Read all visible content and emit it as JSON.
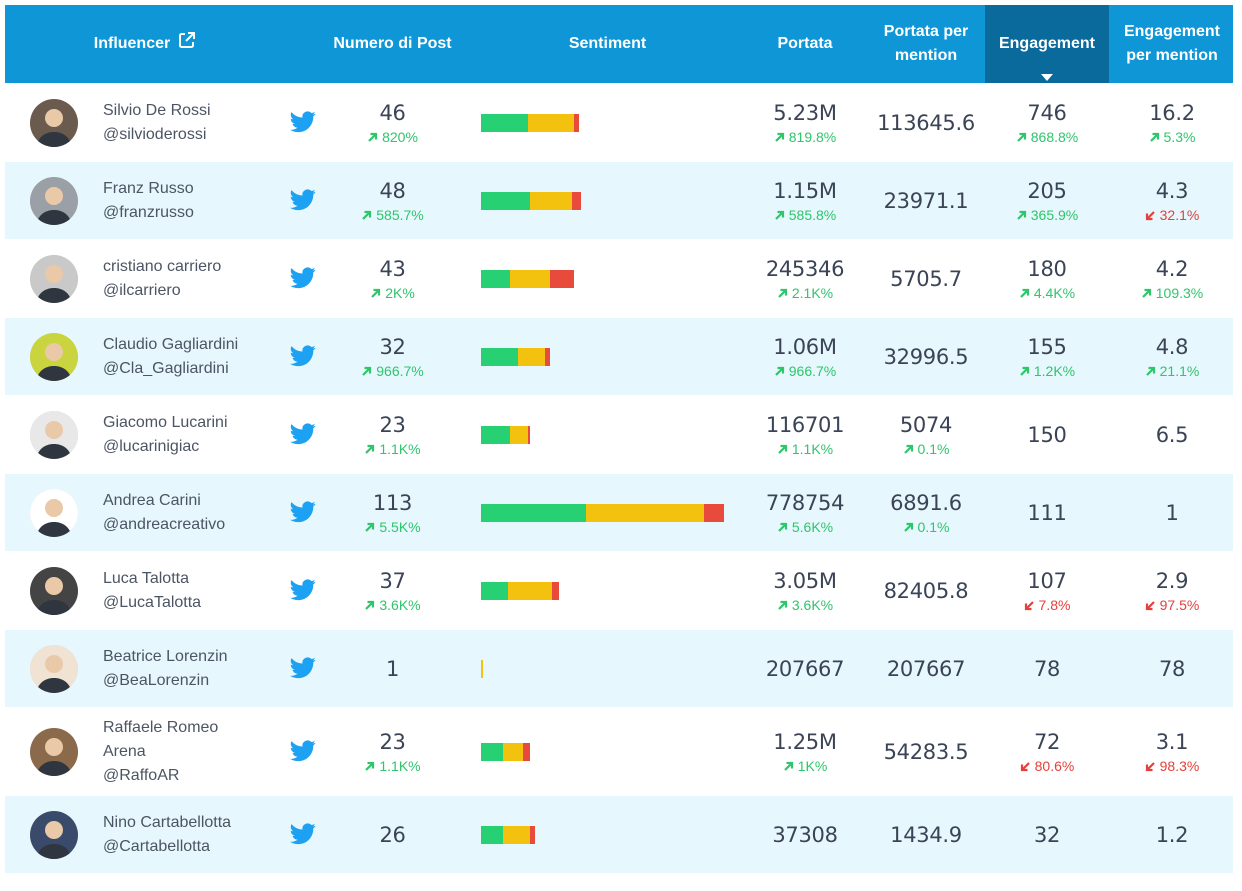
{
  "header": {
    "influencer": "Influencer",
    "posts": "Numero di Post",
    "sentiment": "Sentiment",
    "reach": "Portata",
    "reach_per_mention": "Portata per mention",
    "engagement": "Engagement",
    "engagement_per_mention": "Engagement per mention"
  },
  "colors": {
    "header": "#0f96d6",
    "sorted_header": "#0a6a9c",
    "positive": "#26d073",
    "neutral": "#f3c20e",
    "negative": "#e84a3c",
    "up": "#2ec56b",
    "down": "#e5403a",
    "twitter": "#1da1f2"
  },
  "rows": [
    {
      "name": "Silvio De Rossi",
      "handle": "@silvioderossi",
      "posts": "46",
      "posts_delta": "820%",
      "posts_dir": "up",
      "sentiment": [
        0.19,
        0.19,
        0.02
      ],
      "reach": "5.23M",
      "reach_delta": "819.8%",
      "reach_dir": "up",
      "rpm": "113645.6",
      "rpm_delta": "",
      "rpm_dir": "",
      "eng": "746",
      "eng_delta": "868.8%",
      "eng_dir": "up",
      "epm": "16.2",
      "epm_delta": "5.3%",
      "epm_dir": "up"
    },
    {
      "name": "Franz Russo",
      "handle": "@franzrusso",
      "posts": "48",
      "posts_delta": "585.7%",
      "posts_dir": "up",
      "sentiment": [
        0.2,
        0.17,
        0.04
      ],
      "reach": "1.15M",
      "reach_delta": "585.8%",
      "reach_dir": "up",
      "rpm": "23971.1",
      "rpm_delta": "",
      "rpm_dir": "",
      "eng": "205",
      "eng_delta": "365.9%",
      "eng_dir": "up",
      "epm": "4.3",
      "epm_delta": "32.1%",
      "epm_dir": "down"
    },
    {
      "name": "cristiano carriero",
      "handle": "@ilcarriero",
      "posts": "43",
      "posts_delta": "2K%",
      "posts_dir": "up",
      "sentiment": [
        0.12,
        0.16,
        0.1
      ],
      "reach": "245346",
      "reach_delta": "2.1K%",
      "reach_dir": "up",
      "rpm": "5705.7",
      "rpm_delta": "",
      "rpm_dir": "",
      "eng": "180",
      "eng_delta": "4.4K%",
      "eng_dir": "up",
      "epm": "4.2",
      "epm_delta": "109.3%",
      "epm_dir": "up"
    },
    {
      "name": "Claudio Gagliardini",
      "handle": "@Cla_Gagliardini",
      "posts": "32",
      "posts_delta": "966.7%",
      "posts_dir": "up",
      "sentiment": [
        0.15,
        0.11,
        0.02
      ],
      "reach": "1.06M",
      "reach_delta": "966.7%",
      "reach_dir": "up",
      "rpm": "32996.5",
      "rpm_delta": "",
      "rpm_dir": "",
      "eng": "155",
      "eng_delta": "1.2K%",
      "eng_dir": "up",
      "epm": "4.8",
      "epm_delta": "21.1%",
      "epm_dir": "up"
    },
    {
      "name": "Giacomo Lucarini",
      "handle": "@lucarinigiac",
      "posts": "23",
      "posts_delta": "1.1K%",
      "posts_dir": "up",
      "sentiment": [
        0.12,
        0.07,
        0.01
      ],
      "reach": "116701",
      "reach_delta": "1.1K%",
      "reach_dir": "up",
      "rpm": "5074",
      "rpm_delta": "0.1%",
      "rpm_dir": "up",
      "eng": "150",
      "eng_delta": "",
      "eng_dir": "",
      "epm": "6.5",
      "epm_delta": "",
      "epm_dir": ""
    },
    {
      "name": "Andrea Carini",
      "handle": "@andreacreativo",
      "posts": "113",
      "posts_delta": "5.5K%",
      "posts_dir": "up",
      "sentiment": [
        0.43,
        0.48,
        0.08
      ],
      "reach": "778754",
      "reach_delta": "5.6K%",
      "reach_dir": "up",
      "rpm": "6891.6",
      "rpm_delta": "0.1%",
      "rpm_dir": "up",
      "eng": "111",
      "eng_delta": "",
      "eng_dir": "",
      "epm": "1",
      "epm_delta": "",
      "epm_dir": ""
    },
    {
      "name": "Luca Talotta",
      "handle": "@LucaTalotta",
      "posts": "37",
      "posts_delta": "3.6K%",
      "posts_dir": "up",
      "sentiment": [
        0.11,
        0.18,
        0.03
      ],
      "reach": "3.05M",
      "reach_delta": "3.6K%",
      "reach_dir": "up",
      "rpm": "82405.8",
      "rpm_delta": "",
      "rpm_dir": "",
      "eng": "107",
      "eng_delta": "7.8%",
      "eng_dir": "down",
      "epm": "2.9",
      "epm_delta": "97.5%",
      "epm_dir": "down"
    },
    {
      "name": "Beatrice Lorenzin",
      "handle": "@BeaLorenzin",
      "posts": "1",
      "posts_delta": "",
      "posts_dir": "",
      "sentiment": [
        0,
        0.008,
        0
      ],
      "reach": "207667",
      "reach_delta": "",
      "reach_dir": "",
      "rpm": "207667",
      "rpm_delta": "",
      "rpm_dir": "",
      "eng": "78",
      "eng_delta": "",
      "eng_dir": "",
      "epm": "78",
      "epm_delta": "",
      "epm_dir": ""
    },
    {
      "name": "Raffaele Romeo Arena",
      "handle": "@RaffoAR",
      "posts": "23",
      "posts_delta": "1.1K%",
      "posts_dir": "up",
      "sentiment": [
        0.09,
        0.08,
        0.03
      ],
      "reach": "1.25M",
      "reach_delta": "1K%",
      "reach_dir": "up",
      "rpm": "54283.5",
      "rpm_delta": "",
      "rpm_dir": "",
      "eng": "72",
      "eng_delta": "80.6%",
      "eng_dir": "down",
      "epm": "3.1",
      "epm_delta": "98.3%",
      "epm_dir": "down"
    },
    {
      "name": "Nino Cartabellotta",
      "handle": "@Cartabellotta",
      "posts": "26",
      "posts_delta": "",
      "posts_dir": "",
      "sentiment": [
        0.09,
        0.11,
        0.02
      ],
      "reach": "37308",
      "reach_delta": "",
      "reach_dir": "",
      "rpm": "1434.9",
      "rpm_delta": "",
      "rpm_dir": "",
      "eng": "32",
      "eng_delta": "",
      "eng_dir": "",
      "epm": "1.2",
      "epm_delta": "",
      "epm_dir": ""
    }
  ]
}
